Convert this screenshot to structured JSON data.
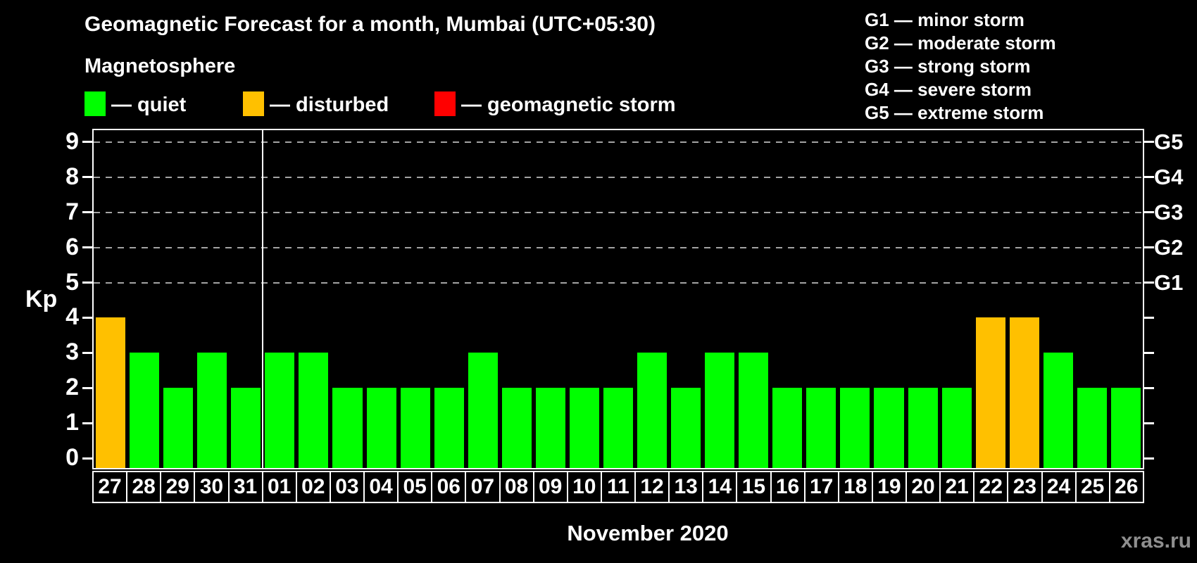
{
  "header": {
    "title": "Geomagnetic Forecast for a month, Mumbai (UTC+05:30)",
    "subtitle": "Magnetosphere"
  },
  "legend": [
    {
      "key": "quiet",
      "label": "— quiet",
      "color": "#00ff00"
    },
    {
      "key": "disturbed",
      "label": "— disturbed",
      "color": "#ffc000"
    },
    {
      "key": "storm",
      "label": "— geomagnetic storm",
      "color": "#ff0000"
    }
  ],
  "g_scale_legend": [
    "G1 — minor storm",
    "G2 — moderate storm",
    "G3 — strong storm",
    "G4 — severe storm",
    "G5 — extreme storm"
  ],
  "chart_data": {
    "type": "bar",
    "title": "Geomagnetic Forecast for a month, Mumbai (UTC+05:30)",
    "ylabel": "Kp",
    "xlabel": "November 2020",
    "ylim": [
      0,
      9
    ],
    "yticks": [
      0,
      1,
      2,
      3,
      4,
      5,
      6,
      7,
      8,
      9
    ],
    "gridlines_at": [
      5,
      6,
      7,
      8,
      9
    ],
    "grid_style": "horizontal dashed gray lines at storm levels only",
    "right_axis_labels": [
      {
        "label": "G1",
        "value": 5
      },
      {
        "label": "G2",
        "value": 6
      },
      {
        "label": "G3",
        "value": 7
      },
      {
        "label": "G4",
        "value": 8
      },
      {
        "label": "G5",
        "value": 9
      }
    ],
    "categories": [
      "27",
      "28",
      "29",
      "30",
      "31",
      "01",
      "02",
      "03",
      "04",
      "05",
      "06",
      "07",
      "08",
      "09",
      "10",
      "11",
      "12",
      "13",
      "14",
      "15",
      "16",
      "17",
      "18",
      "19",
      "20",
      "21",
      "22",
      "23",
      "24",
      "25",
      "26"
    ],
    "values": [
      4,
      3,
      2,
      3,
      2,
      3,
      3,
      2,
      2,
      2,
      2,
      3,
      2,
      2,
      2,
      2,
      3,
      2,
      3,
      3,
      2,
      2,
      2,
      2,
      2,
      2,
      4,
      4,
      3,
      2,
      2
    ],
    "statuses": [
      "disturbed",
      "quiet",
      "quiet",
      "quiet",
      "quiet",
      "quiet",
      "quiet",
      "quiet",
      "quiet",
      "quiet",
      "quiet",
      "quiet",
      "quiet",
      "quiet",
      "quiet",
      "quiet",
      "quiet",
      "quiet",
      "quiet",
      "quiet",
      "quiet",
      "quiet",
      "quiet",
      "quiet",
      "quiet",
      "quiet",
      "disturbed",
      "disturbed",
      "quiet",
      "quiet",
      "quiet"
    ],
    "status_colors": {
      "quiet": "#00ff00",
      "disturbed": "#ffc000",
      "storm": "#ff0000"
    },
    "month_separator_before_category": "01",
    "legend_position": "top"
  },
  "footer": {
    "xaxis_label": "November 2020",
    "watermark": "xras.ru"
  }
}
